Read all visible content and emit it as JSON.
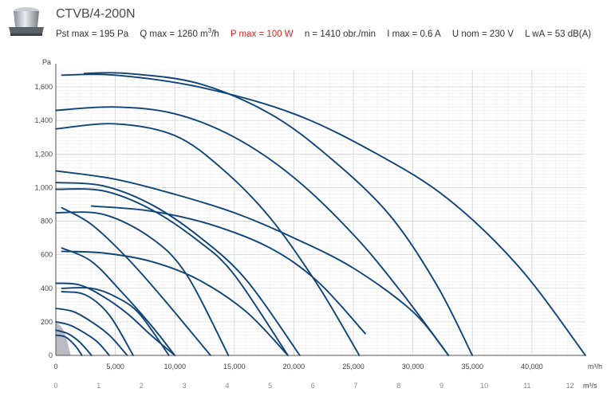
{
  "header": {
    "model": "CTVB/4-200N",
    "specs": {
      "pst": "Pst max = 195 Pa",
      "q_prefix": "Q max = 1260 m",
      "q_sup": "3",
      "q_suffix": "/h",
      "p": "P max = 100 W",
      "n": "n = 1410 obr./min",
      "i": "I max = 0.6 A",
      "u": "U nom = 230 V",
      "l": "L wA = 53 dB(A)"
    },
    "colors": {
      "highlight": "#e02020",
      "curve": "#0e4477",
      "selected": "#b3b3bd"
    }
  },
  "chart_data": {
    "type": "line",
    "ylabel": "Pa",
    "xlabel": "m³/h",
    "x2label": "m³/s",
    "xlim": [
      0,
      44500
    ],
    "ylim": [
      0,
      1700
    ],
    "x_ticks": [
      0,
      5000,
      10000,
      15000,
      20000,
      25000,
      30000,
      35000,
      40000
    ],
    "x_tick_labels": [
      "0",
      "5,000",
      "10,000",
      "15,000",
      "20,000",
      "25,000",
      "30,000",
      "35,000",
      "40,000"
    ],
    "y_ticks": [
      0,
      200,
      400,
      600,
      800,
      1000,
      1200,
      1400,
      1600
    ],
    "y_tick_labels": [
      "0",
      "200",
      "400",
      "600",
      "800",
      "1,000",
      "1,200",
      "1,400",
      "1,600"
    ],
    "x2_ticks": [
      0,
      1,
      2,
      3,
      4,
      5,
      6,
      7,
      8,
      9,
      10,
      11,
      12
    ],
    "x2_tick_labels": [
      "0",
      "1",
      "2",
      "3",
      "4",
      "5",
      "6",
      "7",
      "8",
      "9",
      "10",
      "11",
      "12"
    ],
    "grid": true,
    "selected_curve": {
      "x": [
        0,
        400,
        800,
        1260
      ],
      "y": [
        195,
        175,
        120,
        0
      ]
    },
    "series": [
      {
        "x": [
          500,
          5000,
          12000,
          20000,
          27000,
          33000,
          39000,
          44500
        ],
        "y": [
          1670,
          1670,
          1600,
          1440,
          1200,
          930,
          520,
          0
        ]
      },
      {
        "x": [
          2400,
          6000,
          12000,
          18000,
          23000,
          28000,
          32000,
          35000
        ],
        "y": [
          1680,
          1680,
          1620,
          1440,
          1180,
          840,
          420,
          0
        ]
      },
      {
        "x": [
          0,
          5000,
          10000,
          15000,
          20000,
          25000,
          29000,
          33000
        ],
        "y": [
          1460,
          1480,
          1440,
          1300,
          1060,
          720,
          380,
          0
        ]
      },
      {
        "x": [
          0,
          5000,
          10000,
          14000,
          18000,
          22000,
          25500
        ],
        "y": [
          1350,
          1380,
          1310,
          1110,
          820,
          420,
          0
        ]
      },
      {
        "x": [
          0,
          5000,
          10000,
          15000,
          20000,
          25000,
          30000,
          33000
        ],
        "y": [
          1100,
          1050,
          960,
          850,
          700,
          520,
          260,
          0
        ]
      },
      {
        "x": [
          3000,
          8000,
          13000,
          18000,
          22000,
          26000
        ],
        "y": [
          890,
          860,
          780,
          640,
          440,
          130
        ]
      },
      {
        "x": [
          0,
          4000,
          8000,
          12000,
          16000,
          20500
        ],
        "y": [
          1030,
          1010,
          900,
          710,
          450,
          0
        ]
      },
      {
        "x": [
          0,
          4000,
          8000,
          12000,
          15000,
          19500
        ],
        "y": [
          990,
          980,
          870,
          680,
          480,
          0
        ]
      },
      {
        "x": [
          0,
          4000,
          8000,
          11000,
          14500
        ],
        "y": [
          850,
          840,
          700,
          480,
          0
        ]
      },
      {
        "x": [
          500,
          3000,
          6000,
          9000,
          13000
        ],
        "y": [
          880,
          780,
          580,
          340,
          0
        ]
      },
      {
        "x": [
          500,
          4000,
          8000,
          12000,
          16000,
          19500
        ],
        "y": [
          620,
          610,
          560,
          450,
          260,
          0
        ]
      },
      {
        "x": [
          500,
          3000,
          5500,
          8000,
          10000
        ],
        "y": [
          640,
          560,
          380,
          180,
          0
        ]
      },
      {
        "x": [
          500,
          3000,
          5000,
          7000,
          9500
        ],
        "y": [
          400,
          400,
          350,
          250,
          0
        ]
      },
      {
        "x": [
          0,
          2000,
          4000,
          6000,
          8000,
          10000
        ],
        "y": [
          430,
          420,
          350,
          250,
          120,
          0
        ]
      },
      {
        "x": [
          500,
          2500,
          4500,
          6500
        ],
        "y": [
          380,
          360,
          240,
          0
        ]
      },
      {
        "x": [
          0,
          1500,
          3000,
          4500,
          6000
        ],
        "y": [
          280,
          260,
          200,
          120,
          0
        ]
      },
      {
        "x": [
          0,
          1200,
          2500,
          3500,
          4500
        ],
        "y": [
          200,
          180,
          130,
          80,
          0
        ]
      },
      {
        "x": [
          0,
          1000,
          2000,
          3000
        ],
        "y": [
          150,
          130,
          80,
          0
        ]
      },
      {
        "x": [
          0,
          800,
          1600,
          2200
        ],
        "y": [
          120,
          110,
          60,
          0
        ]
      }
    ]
  }
}
